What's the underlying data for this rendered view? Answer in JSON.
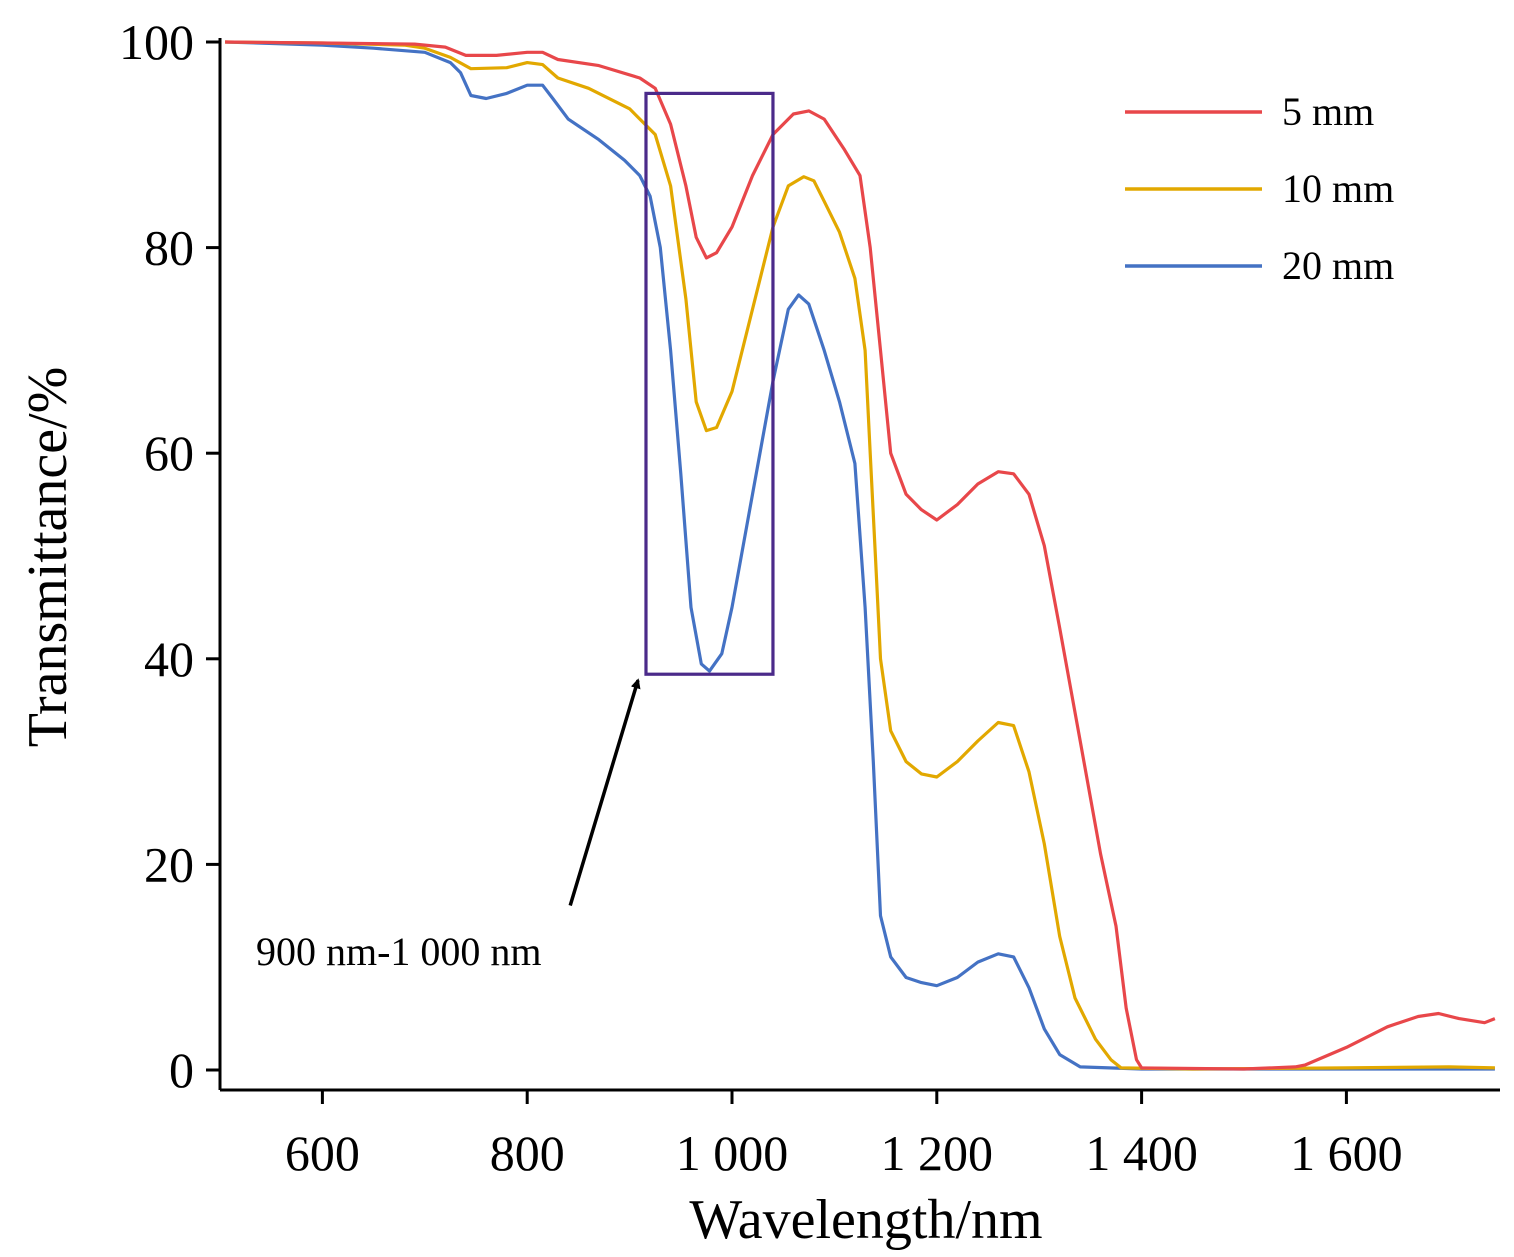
{
  "chart_data": {
    "type": "line",
    "title": "",
    "xlabel": "Wavelength/nm",
    "ylabel": "Transmittance/%",
    "xlim": [
      500,
      1750
    ],
    "ylim": [
      0,
      100
    ],
    "x_ticks": [
      600,
      800,
      1000,
      1200,
      1400,
      1600
    ],
    "x_tick_labels": [
      "600",
      "800",
      "1 000",
      "1 200",
      "1 400",
      "1 600"
    ],
    "y_ticks": [
      0,
      20,
      40,
      60,
      80,
      100
    ],
    "y_tick_labels": [
      "0",
      "20",
      "40",
      "60",
      "80",
      "100"
    ],
    "grid": false,
    "legend_position": "top-right",
    "series": [
      {
        "name": "5 mm",
        "color": "#e8474a",
        "points": [
          [
            505,
            100
          ],
          [
            600,
            99.9
          ],
          [
            690,
            99.8
          ],
          [
            720,
            99.5
          ],
          [
            740,
            98.7
          ],
          [
            770,
            98.7
          ],
          [
            800,
            99
          ],
          [
            815,
            99
          ],
          [
            830,
            98.3
          ],
          [
            870,
            97.7
          ],
          [
            910,
            96.5
          ],
          [
            925,
            95.5
          ],
          [
            940,
            92
          ],
          [
            955,
            86
          ],
          [
            965,
            81
          ],
          [
            975,
            79
          ],
          [
            985,
            79.5
          ],
          [
            1000,
            82
          ],
          [
            1020,
            87
          ],
          [
            1040,
            91
          ],
          [
            1060,
            93
          ],
          [
            1075,
            93.3
          ],
          [
            1090,
            92.5
          ],
          [
            1110,
            89.5
          ],
          [
            1125,
            87
          ],
          [
            1135,
            80
          ],
          [
            1145,
            70
          ],
          [
            1155,
            60
          ],
          [
            1170,
            56
          ],
          [
            1185,
            54.5
          ],
          [
            1200,
            53.5
          ],
          [
            1220,
            55
          ],
          [
            1240,
            57
          ],
          [
            1260,
            58.2
          ],
          [
            1275,
            58
          ],
          [
            1290,
            56
          ],
          [
            1305,
            51
          ],
          [
            1320,
            43
          ],
          [
            1340,
            32
          ],
          [
            1360,
            21
          ],
          [
            1375,
            14
          ],
          [
            1385,
            6
          ],
          [
            1395,
            1
          ],
          [
            1400,
            0.2
          ],
          [
            1500,
            0.1
          ],
          [
            1550,
            0.3
          ],
          [
            1560,
            0.5
          ],
          [
            1600,
            2.2
          ],
          [
            1640,
            4.2
          ],
          [
            1670,
            5.2
          ],
          [
            1690,
            5.5
          ],
          [
            1710,
            5
          ],
          [
            1735,
            4.6
          ],
          [
            1745,
            5
          ]
        ]
      },
      {
        "name": "10 mm",
        "color": "#e2a800",
        "points": [
          [
            505,
            100
          ],
          [
            600,
            99.9
          ],
          [
            680,
            99.7
          ],
          [
            700,
            99.4
          ],
          [
            725,
            98.5
          ],
          [
            745,
            97.4
          ],
          [
            780,
            97.5
          ],
          [
            800,
            98
          ],
          [
            815,
            97.8
          ],
          [
            830,
            96.5
          ],
          [
            860,
            95.5
          ],
          [
            900,
            93.5
          ],
          [
            925,
            91
          ],
          [
            940,
            86
          ],
          [
            955,
            75
          ],
          [
            965,
            65
          ],
          [
            975,
            62.2
          ],
          [
            985,
            62.5
          ],
          [
            1000,
            66
          ],
          [
            1020,
            74
          ],
          [
            1040,
            82
          ],
          [
            1055,
            86
          ],
          [
            1070,
            86.9
          ],
          [
            1080,
            86.5
          ],
          [
            1090,
            84.5
          ],
          [
            1105,
            81.5
          ],
          [
            1120,
            77
          ],
          [
            1130,
            70
          ],
          [
            1135,
            60
          ],
          [
            1140,
            50
          ],
          [
            1145,
            40
          ],
          [
            1155,
            33
          ],
          [
            1170,
            30
          ],
          [
            1185,
            28.8
          ],
          [
            1200,
            28.5
          ],
          [
            1220,
            30
          ],
          [
            1240,
            32
          ],
          [
            1260,
            33.8
          ],
          [
            1275,
            33.5
          ],
          [
            1290,
            29
          ],
          [
            1305,
            22
          ],
          [
            1320,
            13
          ],
          [
            1335,
            7
          ],
          [
            1355,
            3
          ],
          [
            1370,
            1
          ],
          [
            1380,
            0.2
          ],
          [
            1450,
            0.1
          ],
          [
            1600,
            0.2
          ],
          [
            1700,
            0.3
          ],
          [
            1745,
            0.2
          ]
        ]
      },
      {
        "name": "20 mm",
        "color": "#4472c4",
        "points": [
          [
            505,
            100
          ],
          [
            600,
            99.7
          ],
          [
            650,
            99.4
          ],
          [
            700,
            99
          ],
          [
            725,
            98
          ],
          [
            735,
            97
          ],
          [
            745,
            94.8
          ],
          [
            760,
            94.5
          ],
          [
            780,
            95
          ],
          [
            800,
            95.8
          ],
          [
            815,
            95.8
          ],
          [
            825,
            94.5
          ],
          [
            840,
            92.5
          ],
          [
            870,
            90.5
          ],
          [
            895,
            88.5
          ],
          [
            910,
            87
          ],
          [
            920,
            85
          ],
          [
            930,
            80
          ],
          [
            940,
            70
          ],
          [
            950,
            58
          ],
          [
            960,
            45
          ],
          [
            970,
            39.5
          ],
          [
            978,
            38.8
          ],
          [
            990,
            40.5
          ],
          [
            1000,
            45
          ],
          [
            1020,
            56
          ],
          [
            1040,
            67
          ],
          [
            1055,
            74
          ],
          [
            1065,
            75.4
          ],
          [
            1075,
            74.5
          ],
          [
            1090,
            70
          ],
          [
            1105,
            65
          ],
          [
            1120,
            59
          ],
          [
            1130,
            45
          ],
          [
            1138,
            30
          ],
          [
            1145,
            15
          ],
          [
            1155,
            11
          ],
          [
            1170,
            9
          ],
          [
            1185,
            8.5
          ],
          [
            1200,
            8.2
          ],
          [
            1220,
            9
          ],
          [
            1240,
            10.5
          ],
          [
            1260,
            11.3
          ],
          [
            1275,
            11
          ],
          [
            1290,
            8
          ],
          [
            1305,
            4
          ],
          [
            1320,
            1.5
          ],
          [
            1340,
            0.3
          ],
          [
            1400,
            0.1
          ],
          [
            1745,
            0.1
          ]
        ]
      }
    ],
    "highlight_box": {
      "x_range": [
        916,
        1040
      ],
      "y_range": [
        38.5,
        95
      ],
      "color": "#4b2a8a"
    },
    "annotation": {
      "text": "900 nm-1 000 nm",
      "arrow_from": [
        842,
        16
      ],
      "arrow_to": [
        916,
        38.5
      ]
    }
  }
}
